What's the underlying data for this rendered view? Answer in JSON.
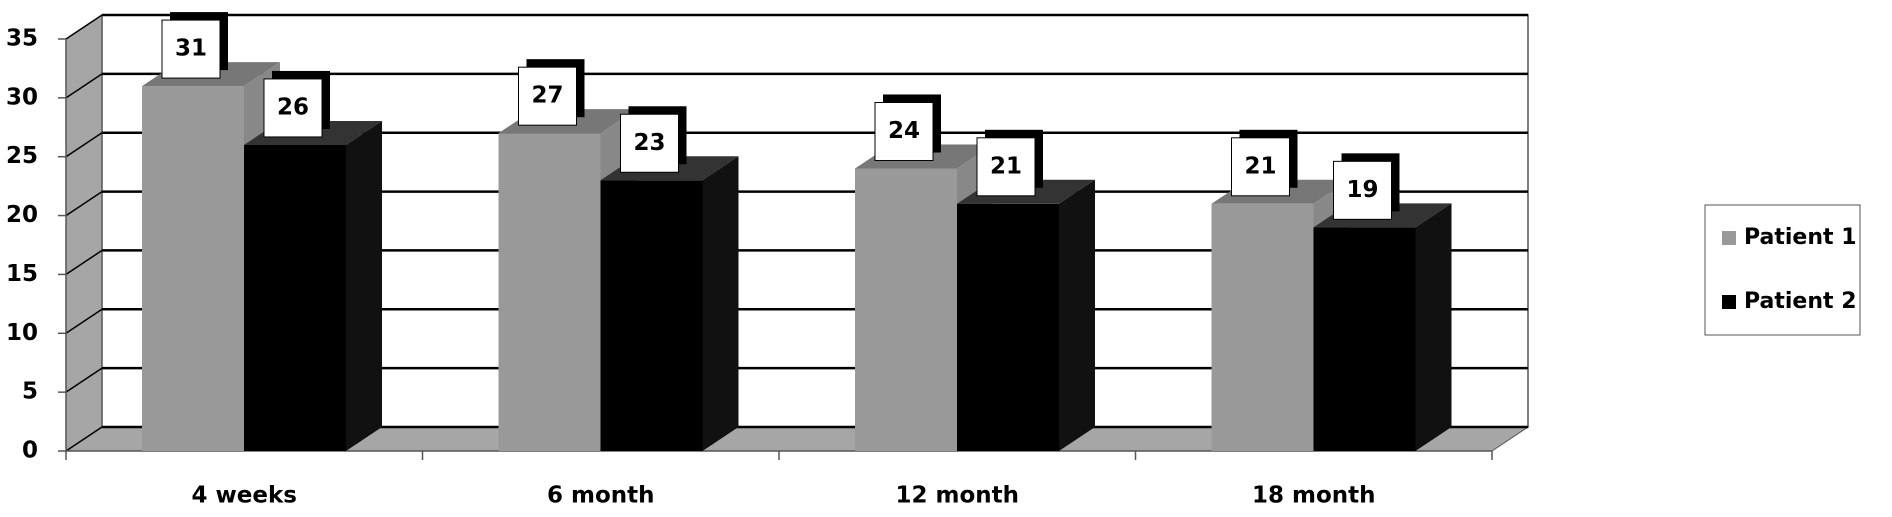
{
  "chart_data": {
    "type": "bar3d",
    "categories": [
      "4 weeks",
      "6 month",
      "12 month",
      "18 month"
    ],
    "series": [
      {
        "name": "Patient 1",
        "color": "#999999",
        "values": [
          31,
          27,
          24,
          21
        ]
      },
      {
        "name": "Patient 2",
        "color": "#000000",
        "values": [
          26,
          23,
          21,
          19
        ]
      }
    ],
    "ylim": [
      0,
      35
    ],
    "yticks": [
      0,
      5,
      10,
      15,
      20,
      25,
      30,
      35
    ],
    "grid": true,
    "legend": "right"
  }
}
